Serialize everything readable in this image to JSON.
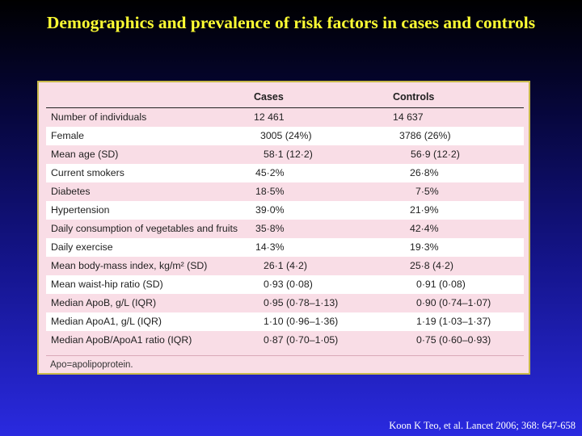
{
  "title": "Demographics and prevalence of risk factors in cases and controls",
  "table": {
    "headers": [
      "",
      "Cases",
      "Controls"
    ],
    "rows": [
      [
        "Number of individuals",
        "12 461",
        "14 637"
      ],
      [
        "Female",
        "3005 (24%)",
        "3786 (26%)"
      ],
      [
        "Mean age (SD)",
        "58·1 (12·2)",
        "56·9 (12·2)"
      ],
      [
        "Current smokers",
        "45·2%",
        "26·8%"
      ],
      [
        "Diabetes",
        "18·5%",
        "7·5%"
      ],
      [
        "Hypertension",
        "39·0%",
        "21·9%"
      ],
      [
        "Daily consumption of vegetables and fruits",
        "35·8%",
        "42·4%"
      ],
      [
        "Daily exercise",
        "14·3%",
        "19·3%"
      ],
      [
        "Mean body-mass index, kg/m² (SD)",
        "26·1 (4·2)",
        "25·8 (4·2)"
      ],
      [
        "Mean waist-hip ratio (SD)",
        "0·93 (0·08)",
        "0·91 (0·08)"
      ],
      [
        "Median ApoB, g/L (IQR)",
        "0·95 (0·78–1·13)",
        "0·90 (0·74–1·07)"
      ],
      [
        "Median ApoA1, g/L (IQR)",
        "1·10 (0·96–1·36)",
        "1·19 (1·03–1·37)"
      ],
      [
        "Median ApoB/ApoA1 ratio (IQR)",
        "0·87 (0·70–1·05)",
        "0·75 (0·60–0·93)"
      ]
    ],
    "footnote": "Apo=apolipoprotein."
  },
  "citation": "Koon K Teo, et al. Lancet 2006; 368: 647-658"
}
